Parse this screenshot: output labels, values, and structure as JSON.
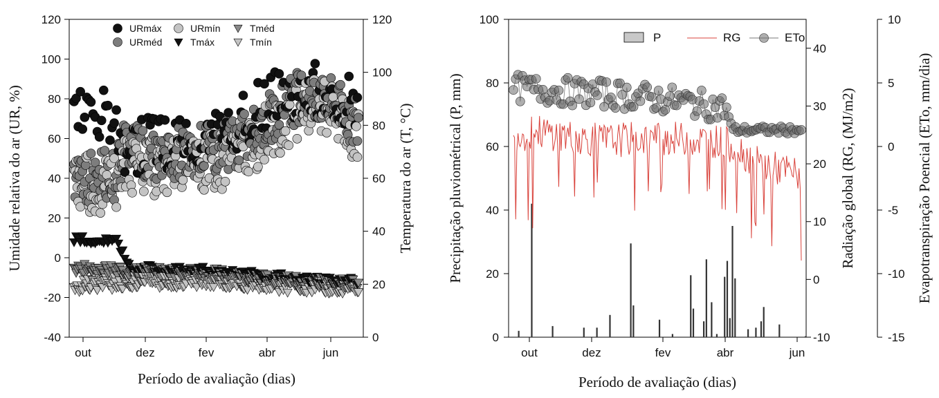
{
  "chart_data": [
    {
      "type": "scatter",
      "xlabel": "Período de avaliação (dias)",
      "ylabel": "Umidade relativa do ar (UR, %)",
      "y2label": "Temperatura do ar (T, °C)",
      "x_ticks": [
        "out",
        "dez",
        "fev",
        "abr",
        "jun"
      ],
      "y_ticks": [
        -40,
        -20,
        0,
        20,
        40,
        60,
        80,
        100,
        120
      ],
      "y2_ticks": [
        0,
        20,
        40,
        60,
        80,
        100,
        120
      ],
      "ylim": [
        -40,
        120
      ],
      "y2lim": [
        0,
        120
      ],
      "colors": {
        "URmax": "#111111",
        "URmin": "#c4c4c4",
        "Tmed": "#8a8a8a",
        "URmed": "#7d7d7d",
        "Tmax": "#111111",
        "Tmin": "#c4c4c4"
      },
      "legend": [
        {
          "key": "URmax",
          "label": "URmáx"
        },
        {
          "key": "URmin",
          "label": "URmín"
        },
        {
          "key": "Tmed",
          "label": "Tméd"
        },
        {
          "key": "URmed",
          "label": "URméd"
        },
        {
          "key": "Tmax",
          "label": "Tmáx"
        },
        {
          "key": "Tmin",
          "label": "Tmín"
        }
      ],
      "series_profile": {
        "URmax": [
          [
            0,
            72
          ],
          [
            0.15,
            70
          ],
          [
            0.17,
            55
          ],
          [
            0.3,
            58
          ],
          [
            0.5,
            62
          ],
          [
            0.6,
            70
          ],
          [
            0.7,
            80
          ],
          [
            0.8,
            85
          ],
          [
            0.9,
            83
          ],
          [
            1,
            75
          ]
        ],
        "URmed": [
          [
            0,
            40
          ],
          [
            0.15,
            42
          ],
          [
            0.17,
            55
          ],
          [
            0.3,
            52
          ],
          [
            0.5,
            55
          ],
          [
            0.6,
            60
          ],
          [
            0.7,
            72
          ],
          [
            0.8,
            82
          ],
          [
            0.9,
            78
          ],
          [
            1,
            68
          ]
        ],
        "URmin": [
          [
            0,
            38
          ],
          [
            0.15,
            36
          ],
          [
            0.17,
            48
          ],
          [
            0.3,
            45
          ],
          [
            0.5,
            48
          ],
          [
            0.6,
            55
          ],
          [
            0.7,
            65
          ],
          [
            0.8,
            76
          ],
          [
            0.9,
            74
          ],
          [
            1,
            62
          ]
        ],
        "Tmax": [
          [
            0,
            37
          ],
          [
            0.15,
            36
          ],
          [
            0.2,
            26
          ],
          [
            0.5,
            25
          ],
          [
            0.8,
            22
          ],
          [
            1,
            21
          ]
        ],
        "Tmed": [
          [
            0,
            26
          ],
          [
            0.2,
            25
          ],
          [
            0.5,
            24
          ],
          [
            0.8,
            21
          ],
          [
            1,
            20
          ]
        ],
        "Tmin": [
          [
            0,
            19
          ],
          [
            0.2,
            21
          ],
          [
            0.5,
            21
          ],
          [
            0.8,
            19
          ],
          [
            1,
            18
          ]
        ]
      },
      "n_days": 270
    },
    {
      "type": "bar",
      "xlabel": "Período de avaliação (dias)",
      "ylabel": "Precipitação pluviométrical (P, mm)",
      "y2label": "Radiação global (RG, (MJ/m2)",
      "y3label": "Evapotranspiração Poencial (ETo, mm/dia)",
      "x_ticks": [
        "out",
        "dez",
        "fev",
        "abr",
        "jun"
      ],
      "y_ticks": [
        0,
        20,
        40,
        60,
        80,
        100
      ],
      "y2_ticks": [
        -10,
        0,
        10,
        20,
        30,
        40
      ],
      "y3_ticks": [
        -15,
        -10,
        -5,
        0,
        5,
        10
      ],
      "ylim": [
        0,
        100
      ],
      "y2lim": [
        -10,
        45
      ],
      "y3lim": [
        -15,
        10
      ],
      "colors": {
        "P": "#333333",
        "RG": "#d9423b",
        "ETo": "#555555"
      },
      "legend": [
        {
          "key": "P",
          "label": "P"
        },
        {
          "key": "RG",
          "label": "RG"
        },
        {
          "key": "ETo",
          "label": "ETo"
        }
      ],
      "precip_days": [
        [
          2,
          2
        ],
        [
          7,
          42
        ],
        [
          15,
          3.5
        ],
        [
          27,
          3
        ],
        [
          32,
          3
        ],
        [
          37,
          7
        ],
        [
          45,
          29.5
        ],
        [
          46,
          10
        ],
        [
          56,
          5.5
        ],
        [
          61,
          1
        ],
        [
          68,
          19.5
        ],
        [
          69,
          9
        ],
        [
          73,
          5
        ],
        [
          74,
          24.5
        ],
        [
          76,
          11
        ],
        [
          78,
          1
        ],
        [
          81,
          19
        ],
        [
          82,
          24
        ],
        [
          83,
          6
        ],
        [
          84,
          35
        ],
        [
          85,
          18.5
        ],
        [
          90,
          2.5
        ],
        [
          93,
          3
        ],
        [
          95,
          5
        ],
        [
          96,
          9.5
        ],
        [
          102,
          4
        ],
        [
          112,
          0.3
        ]
      ],
      "rg_profile": [
        [
          0,
          25
        ],
        [
          0.1,
          25.5
        ],
        [
          0.3,
          24
        ],
        [
          0.5,
          24.5
        ],
        [
          0.7,
          24
        ],
        [
          0.77,
          23
        ],
        [
          0.85,
          20
        ],
        [
          1,
          18
        ]
      ],
      "eto_profile": [
        [
          0,
          4.6
        ],
        [
          0.2,
          4.3
        ],
        [
          0.4,
          4.0
        ],
        [
          0.6,
          3.5
        ],
        [
          0.74,
          3.0
        ],
        [
          0.76,
          1.3
        ],
        [
          1,
          1.3
        ]
      ],
      "n_days": 255
    }
  ]
}
